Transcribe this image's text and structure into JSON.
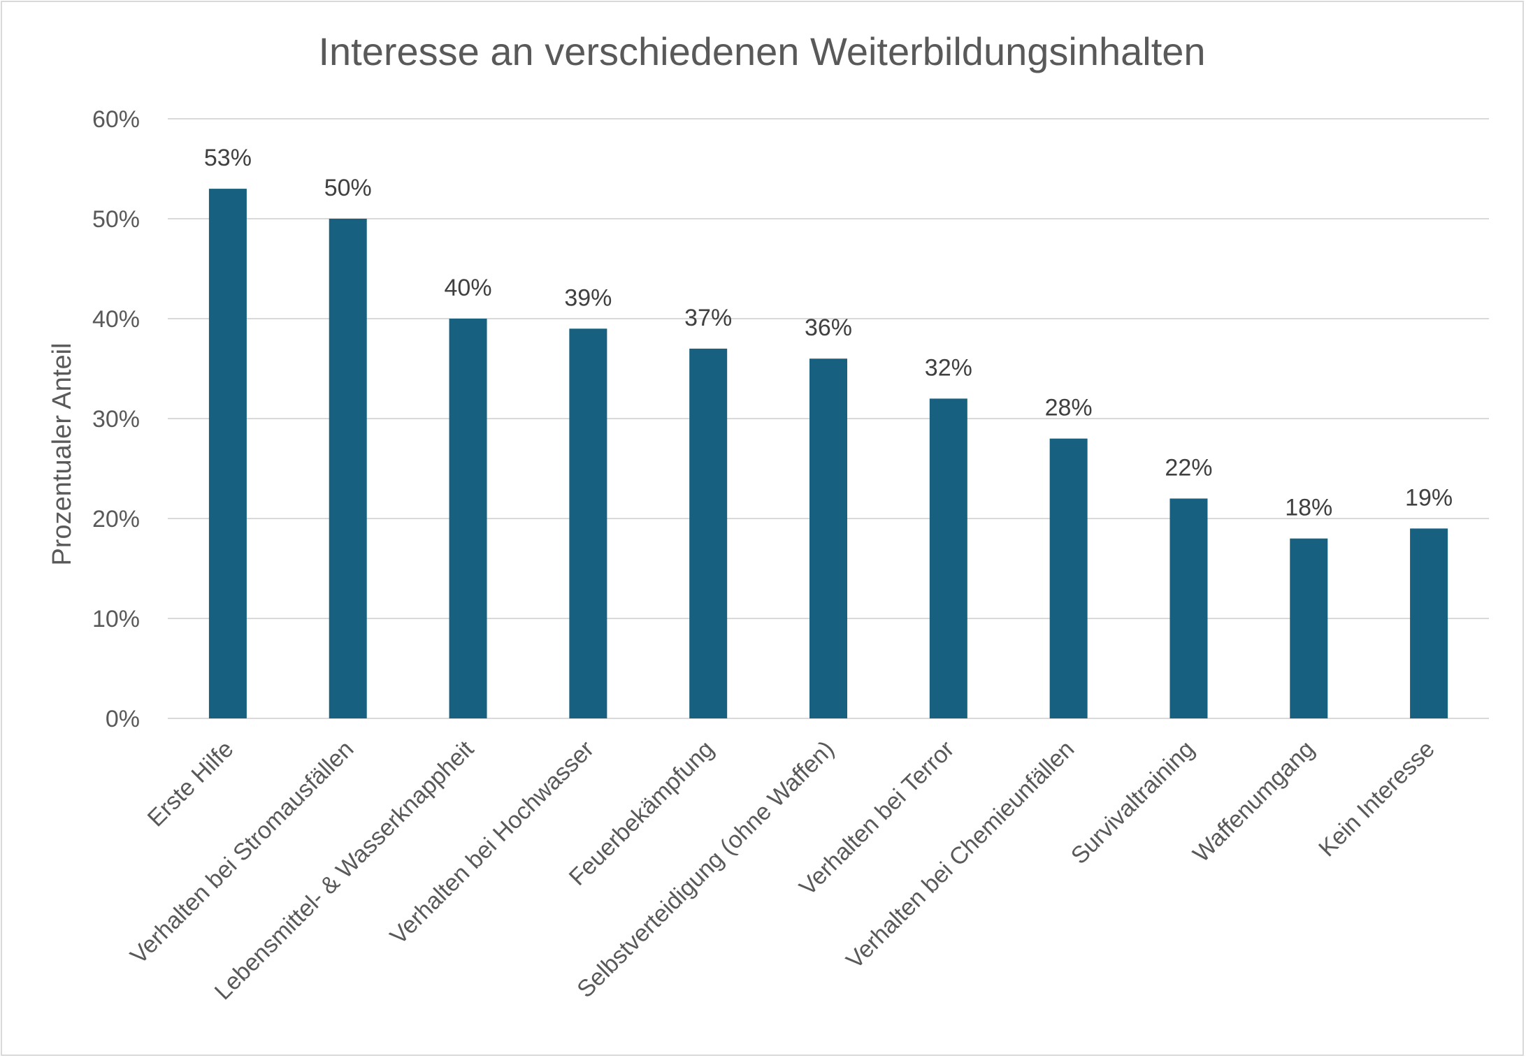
{
  "chart_data": {
    "type": "bar",
    "title": "Interesse an verschiedenen Weiterbildungsinhalten",
    "xlabel": "",
    "ylabel": "Prozentualer Anteil",
    "ylim": [
      0,
      60
    ],
    "yticks": [
      "0%",
      "10%",
      "20%",
      "30%",
      "40%",
      "50%",
      "60%"
    ],
    "grid": true,
    "legend": "none",
    "bar_color": "#17607f",
    "categories": [
      "Erste Hilfe",
      "Verhalten bei Stromausfällen",
      "Lebensmittel- & Wasserknappheit",
      "Verhalten bei Hochwasser",
      "Feuerbekämpfung",
      "Selbstverteidigung (ohne Waffen)",
      "Verhalten bei Terror",
      "Verhalten bei Chemieunfällen",
      "Survivaltraining",
      "Waffenumgang",
      "Kein Interesse"
    ],
    "values": [
      53,
      50,
      40,
      39,
      37,
      36,
      32,
      28,
      22,
      18,
      19
    ],
    "data_labels": [
      "53%",
      "50%",
      "40%",
      "39%",
      "37%",
      "36%",
      "32%",
      "28%",
      "22%",
      "18%",
      "19%"
    ]
  }
}
